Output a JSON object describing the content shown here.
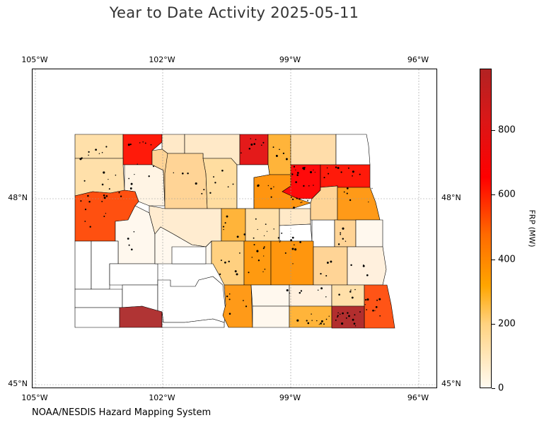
{
  "title": "Year to Date Activity 2025-05-11",
  "credit": "NOAA/NESDIS Hazard Mapping System",
  "map": {
    "lon_ticks": [
      "105°W",
      "102°W",
      "99°W",
      "96°W"
    ],
    "lat_ticks": [
      "48°N",
      "45°N"
    ],
    "gridlines": true,
    "region": "North Dakota counties",
    "marker": "fire detection point (black dot)"
  },
  "colorbar": {
    "label": "FRP (MW)",
    "ticks": [
      "0",
      "200",
      "400",
      "600",
      "800"
    ],
    "range": [
      0,
      980
    ],
    "colors": [
      "#fffaf0",
      "#ffd280",
      "#ffa500",
      "#ff6a00",
      "#ff0000",
      "#b22222"
    ]
  }
}
